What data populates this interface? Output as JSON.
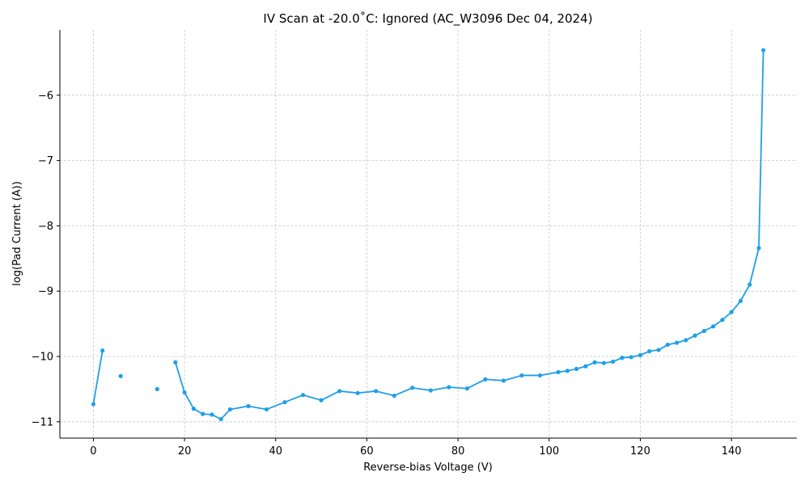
{
  "chart_data": {
    "type": "line",
    "title": "IV Scan at -20.0˚C: Ignored (AC_W3096 Dec 04, 2024)",
    "xlabel": "Reverse-bias Voltage (V)",
    "ylabel": "log(Pad Current (A))",
    "xlim": [
      -7.35,
      154.35
    ],
    "ylim": [
      -11.25,
      -5.0
    ],
    "x_ticks": [
      0,
      20,
      40,
      60,
      80,
      100,
      120,
      140
    ],
    "y_ticks": [
      -11,
      -10,
      -9,
      -8,
      -7,
      -6
    ],
    "y_tick_labels": [
      "−11",
      "−10",
      "−9",
      "−8",
      "−7",
      "−6"
    ],
    "grid": true,
    "color": "#1f9fe8",
    "series": [
      {
        "segments": [
          [
            [
              0,
              -10.73
            ],
            [
              2,
              -9.91
            ]
          ],
          [
            [
              6,
              -10.3
            ]
          ],
          [
            [
              14,
              -10.5
            ]
          ],
          [
            [
              18,
              -10.09
            ],
            [
              20,
              -10.55
            ],
            [
              22,
              -10.8
            ],
            [
              24,
              -10.88
            ],
            [
              26,
              -10.89
            ],
            [
              28,
              -10.96
            ],
            [
              30,
              -10.81
            ],
            [
              34,
              -10.76
            ],
            [
              38,
              -10.81
            ],
            [
              42,
              -10.7
            ],
            [
              46,
              -10.59
            ],
            [
              50,
              -10.67
            ],
            [
              54,
              -10.53
            ],
            [
              58,
              -10.56
            ],
            [
              62,
              -10.53
            ],
            [
              66,
              -10.6
            ],
            [
              70,
              -10.48
            ],
            [
              74,
              -10.52
            ],
            [
              78,
              -10.47
            ],
            [
              82,
              -10.49
            ],
            [
              86,
              -10.35
            ],
            [
              90,
              -10.37
            ],
            [
              94,
              -10.29
            ],
            [
              98,
              -10.29
            ],
            [
              102,
              -10.24
            ],
            [
              104,
              -10.22
            ],
            [
              106,
              -10.19
            ],
            [
              108,
              -10.15
            ],
            [
              110,
              -10.09
            ],
            [
              112,
              -10.1
            ],
            [
              114,
              -10.08
            ],
            [
              116,
              -10.02
            ],
            [
              118,
              -10.01
            ],
            [
              120,
              -9.98
            ],
            [
              122,
              -9.92
            ],
            [
              124,
              -9.9
            ],
            [
              126,
              -9.82
            ],
            [
              128,
              -9.79
            ],
            [
              130,
              -9.75
            ],
            [
              132,
              -9.68
            ],
            [
              134,
              -9.61
            ],
            [
              136,
              -9.54
            ],
            [
              138,
              -9.44
            ],
            [
              140,
              -9.32
            ],
            [
              142,
              -9.15
            ],
            [
              144,
              -8.9
            ],
            [
              146,
              -8.34
            ],
            [
              147,
              -5.31
            ]
          ]
        ]
      }
    ]
  }
}
